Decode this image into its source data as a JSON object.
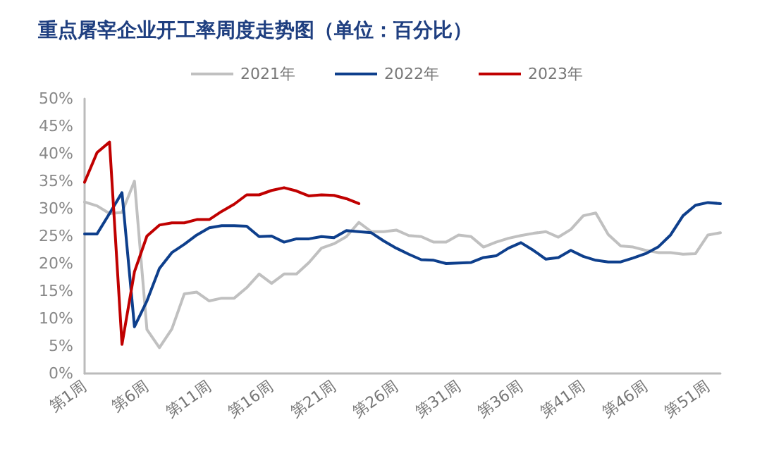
{
  "chart_data": {
    "type": "line",
    "title": "重点屠宰企业开工率周度走势图（单位：百分比）",
    "categories": [
      "第1周",
      null,
      null,
      null,
      null,
      "第6周",
      null,
      null,
      null,
      null,
      "第11周",
      null,
      null,
      null,
      null,
      "第16周",
      null,
      null,
      null,
      null,
      "第21周",
      null,
      null,
      null,
      null,
      "第26周",
      null,
      null,
      null,
      null,
      "第31周",
      null,
      null,
      null,
      null,
      "第36周",
      null,
      null,
      null,
      null,
      "第41周",
      null,
      null,
      null,
      null,
      "第46周",
      null,
      null,
      null,
      null,
      "第51周",
      null
    ],
    "series": [
      {
        "name": "2021年",
        "color": "#c0c0c0",
        "values": [
          31.2,
          30.5,
          29.1,
          29.3,
          35,
          8,
          4.7,
          8.1,
          14.5,
          14.8,
          13.2,
          13.7,
          13.7,
          15.6,
          18.1,
          16.4,
          18.1,
          18.1,
          20.2,
          22.8,
          23.6,
          24.9,
          27.5,
          25.8,
          25.8,
          26.1,
          25.1,
          24.9,
          23.9,
          23.9,
          25.2,
          24.9,
          23,
          23.9,
          24.6,
          25.1,
          25.5,
          25.8,
          24.8,
          26.2,
          28.7,
          29.2,
          25.3,
          23.2,
          23,
          22.4,
          22,
          22,
          21.7,
          21.8,
          25.2,
          25.6
        ]
      },
      {
        "name": "2022年",
        "color": "#0e3f8c",
        "values": [
          25.4,
          25.4,
          29.1,
          32.9,
          8.5,
          13.2,
          19.1,
          22,
          23.5,
          25.2,
          26.5,
          26.9,
          26.9,
          26.8,
          24.9,
          25,
          23.9,
          24.5,
          24.5,
          24.9,
          24.7,
          26,
          25.8,
          25.6,
          24.1,
          22.8,
          21.7,
          20.7,
          20.6,
          20,
          20.1,
          20.2,
          21.1,
          21.4,
          22.8,
          23.8,
          22.4,
          20.8,
          21.1,
          22.4,
          21.3,
          20.6,
          20.3,
          20.3,
          21,
          21.8,
          23,
          25.2,
          28.7,
          30.6,
          31.1,
          30.9
        ]
      },
      {
        "name": "2023年",
        "color": "#c00000",
        "values": [
          34.8,
          40.2,
          42.1,
          5.3,
          18.5,
          25,
          27,
          27.4,
          27.4,
          28,
          28,
          29.5,
          30.8,
          32.5,
          32.5,
          33.3,
          33.8,
          33.2,
          32.3,
          32.5,
          32.4,
          31.8,
          30.9,
          null,
          null,
          null,
          null,
          null,
          null,
          null,
          null,
          null,
          null,
          null,
          null,
          null,
          null,
          null,
          null,
          null,
          null,
          null,
          null,
          null,
          null,
          null,
          null,
          null,
          null,
          null,
          null,
          null
        ]
      }
    ],
    "ylim": [
      0,
      50
    ],
    "yticks": [
      {
        "value": 0,
        "label": "0%"
      },
      {
        "value": 5,
        "label": "5%"
      },
      {
        "value": 10,
        "label": "10%"
      },
      {
        "value": 15,
        "label": "15%"
      },
      {
        "value": 20,
        "label": "20%"
      },
      {
        "value": 25,
        "label": "25%"
      },
      {
        "value": 30,
        "label": "30%"
      },
      {
        "value": 35,
        "label": "35%"
      },
      {
        "value": 40,
        "label": "40%"
      },
      {
        "value": 45,
        "label": "45%"
      },
      {
        "value": 50,
        "label": "50%"
      }
    ],
    "grid": false,
    "legend": "top",
    "marker": "none",
    "line_style": "solid"
  }
}
